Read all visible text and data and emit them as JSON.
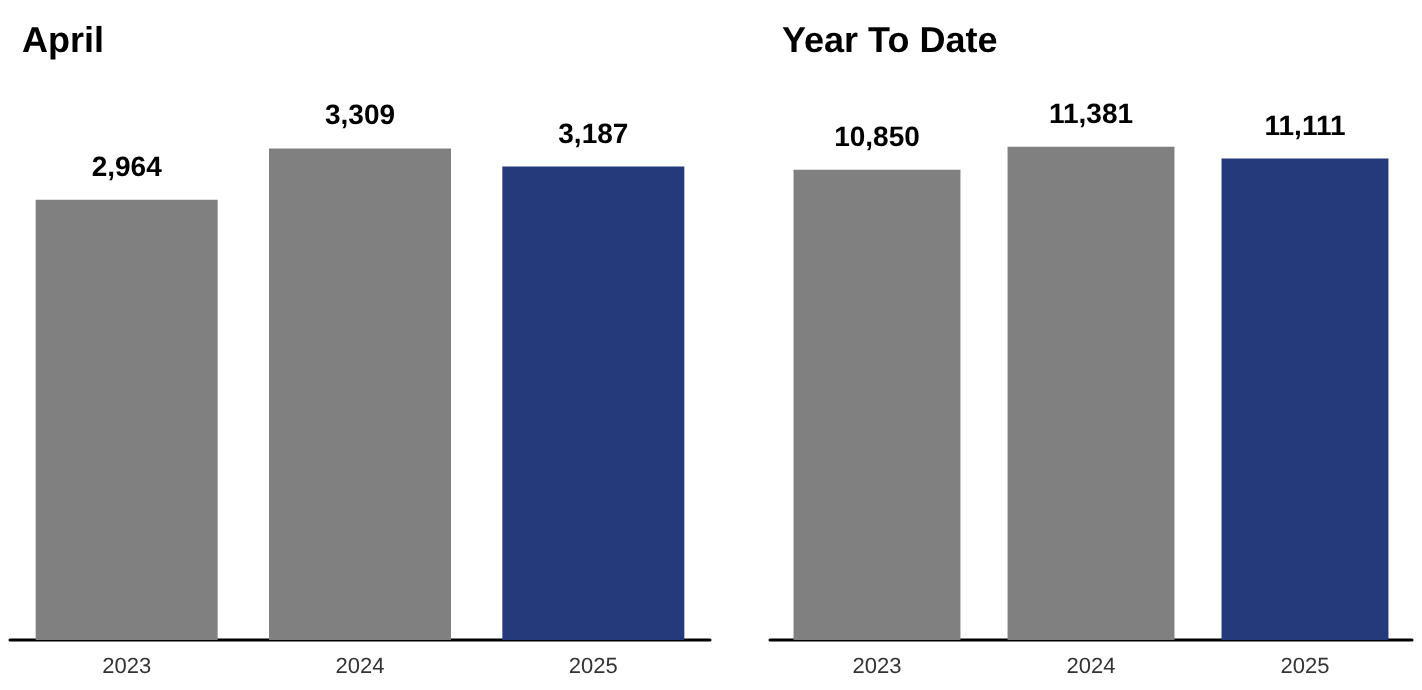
{
  "chart_data": [
    {
      "type": "bar",
      "title": "April",
      "categories": [
        "2023",
        "2024",
        "2025"
      ],
      "values": [
        2964,
        3309,
        3187
      ],
      "value_labels": [
        "2,964",
        "3,309",
        "3,187"
      ],
      "colors": [
        "#808080",
        "#808080",
        "#253a7b"
      ],
      "grid": false,
      "tick_labels": "x"
    },
    {
      "type": "bar",
      "title": "Year To Date",
      "categories": [
        "2023",
        "2024",
        "2025"
      ],
      "values": [
        10850,
        11381,
        11111
      ],
      "value_labels": [
        "10,850",
        "11,381",
        "11,111"
      ],
      "colors": [
        "#808080",
        "#808080",
        "#253a7b"
      ],
      "grid": false,
      "tick_labels": "x"
    }
  ]
}
